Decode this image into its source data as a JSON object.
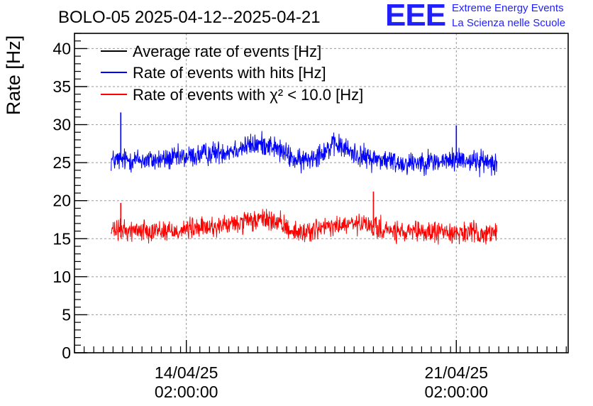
{
  "logo": {
    "mark": "EEE",
    "line1": "Extreme Energy Events",
    "line2": "La Scienza nelle Scuole"
  },
  "colors": {
    "average": "#000000",
    "hits": "#0000ff",
    "chi2": "#ff0000",
    "grid": "#999999"
  },
  "chart_data": {
    "type": "line",
    "title": "BOLO-05 2025-04-12--2025-04-21",
    "ylabel": "Rate [Hz]",
    "xlabel": "",
    "ylim": [
      0,
      42
    ],
    "xlim_days": [
      0,
      12.8
    ],
    "y_ticks": [
      0,
      5,
      10,
      15,
      20,
      25,
      30,
      35,
      40
    ],
    "x_ticks": [
      {
        "day": 2.9,
        "date": "14/04/25",
        "time": "02:00:00"
      },
      {
        "day": 9.9,
        "date": "21/04/25",
        "time": "02:00:00"
      }
    ],
    "grid": true,
    "legend_position": "top-left",
    "legend": [
      {
        "key": "average",
        "label": "Average rate of events [Hz]"
      },
      {
        "key": "hits",
        "label": "Rate of events with hits [Hz]"
      },
      {
        "key": "chi2",
        "label": "Rate of events with χ² < 10.0 [Hz]"
      }
    ],
    "series": [
      {
        "name": "Rate of events with hits [Hz]",
        "key": "hits",
        "noise_amplitude": 1.2,
        "x_days": [
          0.95,
          1.5,
          2.0,
          2.5,
          3.0,
          3.5,
          4.0,
          4.5,
          5.0,
          5.4,
          5.8,
          6.0,
          6.4,
          6.8,
          7.2,
          7.6,
          8.0,
          8.5,
          9.0,
          9.5,
          10.0,
          10.5,
          10.95
        ],
        "values": [
          25.3,
          25.4,
          25.3,
          25.5,
          25.8,
          26.2,
          26.6,
          27.2,
          27.5,
          26.4,
          25.1,
          25.4,
          26.4,
          27.4,
          26.3,
          25.6,
          25.4,
          24.9,
          25.2,
          25.1,
          25.5,
          25.1,
          25.2
        ],
        "spikes": [
          {
            "day": 1.2,
            "value": 31.6
          },
          {
            "day": 9.9,
            "value": 29.9
          }
        ]
      },
      {
        "name": "Rate of events with χ² < 10.0 [Hz]",
        "key": "chi2",
        "noise_amplitude": 1.1,
        "x_days": [
          0.95,
          1.5,
          2.0,
          2.5,
          3.0,
          3.5,
          4.0,
          4.5,
          5.0,
          5.5,
          5.8,
          6.2,
          6.6,
          7.0,
          7.4,
          7.8,
          8.2,
          8.6,
          9.0,
          9.5,
          10.0,
          10.5,
          10.95
        ],
        "values": [
          16.0,
          16.1,
          16.2,
          16.0,
          16.3,
          16.5,
          16.8,
          17.2,
          17.6,
          16.5,
          15.7,
          16.2,
          16.5,
          16.8,
          16.9,
          16.4,
          16.0,
          15.7,
          15.8,
          15.9,
          15.8,
          15.7,
          15.6
        ],
        "spikes": [
          {
            "day": 1.2,
            "value": 19.7
          },
          {
            "day": 7.75,
            "value": 21.2
          }
        ]
      }
    ]
  }
}
